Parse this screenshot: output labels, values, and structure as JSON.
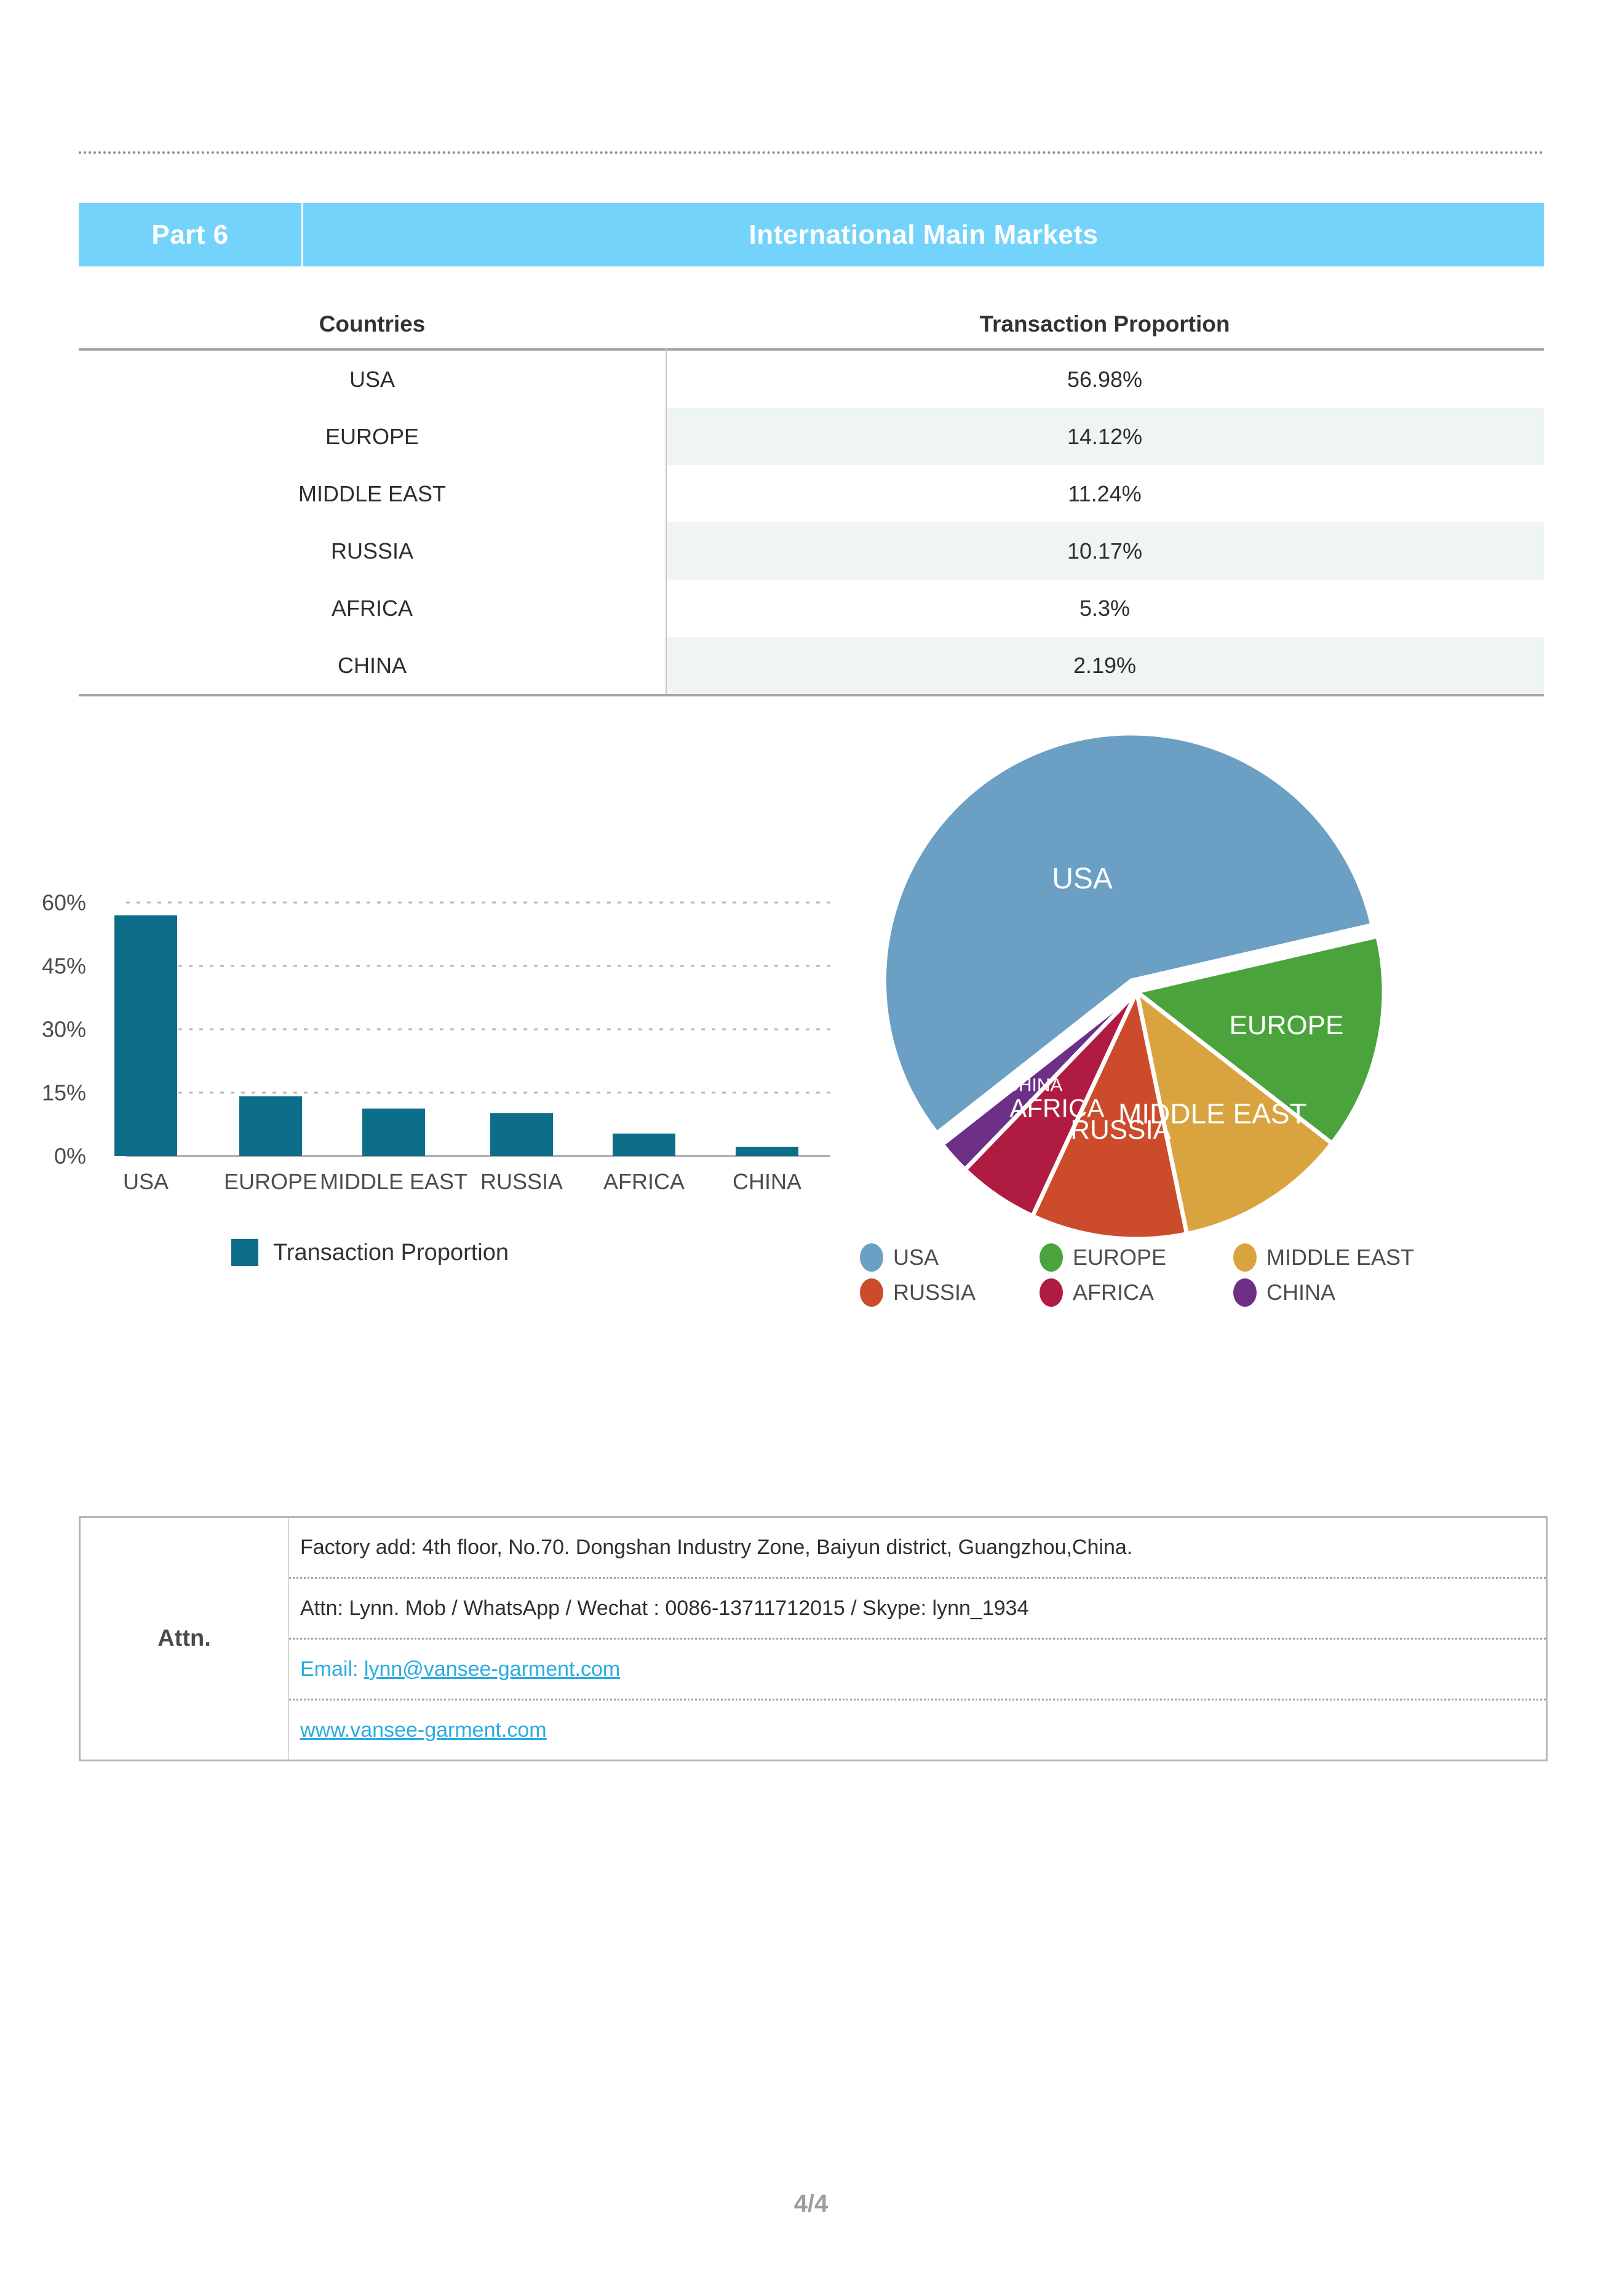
{
  "page": {
    "number": "4/4"
  },
  "header": {
    "part": "Part 6",
    "title": "International Main Markets"
  },
  "colors": {
    "accent_blue": "#74d3fb",
    "bar_teal": "#0d6e89",
    "link_blue": "#29abe2"
  },
  "table": {
    "col1": "Countries",
    "col2": "Transaction Proportion",
    "rows": [
      {
        "country": "USA",
        "proportion": "56.98%"
      },
      {
        "country": "EUROPE",
        "proportion": "14.12%"
      },
      {
        "country": "MIDDLE EAST",
        "proportion": "11.24%"
      },
      {
        "country": "RUSSIA",
        "proportion": "10.17%"
      },
      {
        "country": "AFRICA",
        "proportion": "5.3%"
      },
      {
        "country": "CHINA",
        "proportion": "2.19%"
      }
    ]
  },
  "chart_data": [
    {
      "type": "bar",
      "title": "",
      "categories": [
        "USA",
        "EUROPE",
        "MIDDLE EAST",
        "RUSSIA",
        "AFRICA",
        "CHINA"
      ],
      "series": [
        {
          "name": "Transaction Proportion",
          "values": [
            56.98,
            14.12,
            11.24,
            10.17,
            5.3,
            2.19
          ]
        }
      ],
      "xlabel": "",
      "ylabel": "",
      "ylim": [
        0,
        60
      ],
      "yticks": [
        0,
        15,
        30,
        45,
        60
      ],
      "ytick_labels": [
        "0%",
        "15%",
        "30%",
        "45%",
        "60%"
      ],
      "grid": true,
      "legend_position": "bottom",
      "legend_label": "Transaction Proportion",
      "bar_color": "#0d6e89"
    },
    {
      "type": "pie",
      "labels": [
        "USA",
        "EUROPE",
        "MIDDLE EAST",
        "RUSSIA",
        "AFRICA",
        "CHINA"
      ],
      "values": [
        56.98,
        14.12,
        11.24,
        10.17,
        5.3,
        2.19
      ],
      "colors": [
        "#6ba0c4",
        "#4aa33b",
        "#d9a440",
        "#cb4b2b",
        "#b01c41",
        "#6e2f87"
      ],
      "exploded_label": "USA",
      "start_angle_deg": -13,
      "legend_position": "bottom"
    }
  ],
  "attn": {
    "label": "Attn.",
    "row1": "Factory add: 4th floor, No.70. Dongshan Industry Zone, Baiyun district, Guangzhou,China.",
    "row2": "Attn: Lynn. Mob / WhatsApp / Wechat : 0086-13711712015 / Skype: lynn_1934",
    "row3_prefix": "Email: ",
    "row3_link": "lynn@vansee-garment.com",
    "row4_link": "www.vansee-garment.com"
  }
}
